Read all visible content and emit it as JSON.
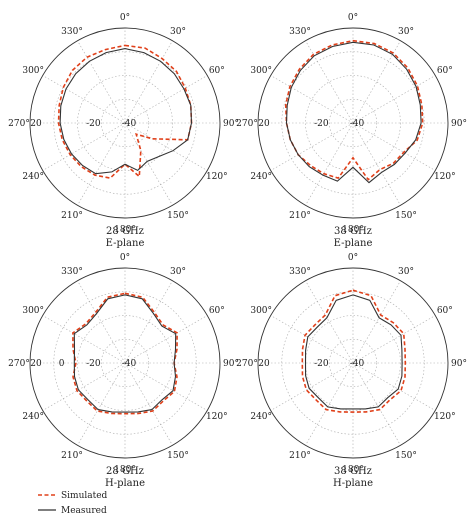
{
  "chart_data": [
    {
      "type": "polar-line",
      "title": "28 GHz",
      "subtitle": "E-plane",
      "angle_labels": [
        "0°",
        "30°",
        "60°",
        "90°",
        "120°",
        "150°",
        "180°",
        "210°",
        "240°",
        "270°",
        "300°",
        "330°"
      ],
      "radial_labels": [
        "20",
        "-20",
        "-40"
      ],
      "radial_range_db": [
        -40,
        20
      ],
      "radial_label_values": [
        20,
        -20,
        -40
      ],
      "grid": true,
      "angles_deg": [
        0,
        15,
        30,
        45,
        60,
        75,
        90,
        105,
        120,
        135,
        150,
        165,
        180,
        195,
        210,
        225,
        240,
        255,
        270,
        285,
        300,
        315,
        330,
        345
      ],
      "series": [
        {
          "name": "Simulated",
          "values": [
            9,
            9,
            7,
            6,
            4,
            3,
            2,
            1,
            -20,
            -30,
            -20,
            -5,
            -14,
            -4,
            -2,
            -1,
            0,
            1,
            2,
            3,
            5,
            7,
            8,
            8
          ]
        },
        {
          "name": "Measured",
          "values": [
            7,
            6,
            5,
            4,
            3,
            3,
            2,
            1,
            -5,
            -10,
            -12,
            -9,
            -14,
            -8,
            -3,
            -2,
            -1,
            0,
            1,
            2,
            3,
            4,
            5,
            6
          ]
        }
      ]
    },
    {
      "type": "polar-line",
      "title": "38 GHz",
      "subtitle": "E-plane",
      "angle_labels": [
        "0°",
        "30°",
        "60°",
        "90°",
        "120°",
        "150°",
        "180°",
        "210°",
        "240°",
        "270°",
        "300°",
        "330°"
      ],
      "radial_labels": [
        "20",
        "-20",
        "-40"
      ],
      "radial_range_db": [
        -40,
        20
      ],
      "radial_label_values": [
        20,
        -20,
        -40
      ],
      "grid": true,
      "angles_deg": [
        0,
        15,
        30,
        45,
        60,
        75,
        90,
        105,
        120,
        135,
        150,
        165,
        180,
        195,
        210,
        225,
        240,
        255,
        270,
        285,
        300,
        315,
        330,
        345
      ],
      "series": [
        {
          "name": "Simulated",
          "values": [
            12,
            12,
            11,
            9,
            7,
            5,
            4,
            2,
            -3,
            -4,
            -6,
            -3,
            -18,
            -4,
            -3,
            -2,
            0,
            1,
            2,
            4,
            6,
            8,
            10,
            11
          ]
        },
        {
          "name": "Measured",
          "values": [
            11,
            11,
            10,
            8,
            6,
            4,
            3,
            1,
            -2,
            -3,
            -4,
            -1,
            -12,
            -2,
            -2,
            -1,
            0,
            1,
            2,
            3,
            5,
            7,
            9,
            10
          ]
        }
      ]
    },
    {
      "type": "polar-line",
      "title": "28 GHz",
      "subtitle": "H-plane",
      "angle_labels": [
        "0°",
        "30°",
        "60°",
        "90°",
        "120°",
        "150°",
        "180°",
        "210°",
        "240°",
        "270°",
        "300°",
        "330°"
      ],
      "radial_labels": [
        "20",
        "0",
        "-20",
        "-40"
      ],
      "radial_range_db": [
        -40,
        20
      ],
      "radial_label_values": [
        20,
        0,
        -20,
        -40
      ],
      "grid": true,
      "angles_deg": [
        0,
        15,
        30,
        45,
        60,
        75,
        90,
        105,
        120,
        135,
        150,
        165,
        180,
        195,
        210,
        225,
        240,
        255,
        270,
        285,
        300,
        315,
        330,
        345
      ],
      "series": [
        {
          "name": "Simulated",
          "values": [
            4,
            3,
            -3,
            -6,
            -2,
            -6,
            -9,
            -6,
            -4,
            -6,
            -5,
            -7,
            -8,
            -7,
            -5,
            -6,
            -5,
            -6,
            -9,
            -6,
            -2,
            -5,
            -3,
            3
          ]
        },
        {
          "name": "Measured",
          "values": [
            3,
            2,
            -4,
            -7,
            -3,
            -7,
            -9,
            -7,
            -5,
            -7,
            -6,
            -8,
            -9,
            -8,
            -6,
            -7,
            -6,
            -7,
            -8,
            -7,
            -3,
            -6,
            -4,
            2
          ]
        }
      ]
    },
    {
      "type": "polar-line",
      "title": "38 GHz",
      "subtitle": "H-plane",
      "angle_labels": [
        "0°",
        "30°",
        "60°",
        "90°",
        "120°",
        "150°",
        "180°",
        "210°",
        "240°",
        "270°",
        "300°",
        "330°"
      ],
      "radial_labels": [
        "20",
        "-20",
        "-40"
      ],
      "radial_range_db": [
        -40,
        20
      ],
      "radial_label_values": [
        20,
        -20,
        -40
      ],
      "grid": true,
      "angles_deg": [
        0,
        15,
        30,
        45,
        60,
        75,
        90,
        105,
        120,
        135,
        150,
        165,
        180,
        195,
        210,
        225,
        240,
        255,
        270,
        285,
        300,
        315,
        330,
        345
      ],
      "series": [
        {
          "name": "Simulated",
          "values": [
            6,
            4,
            -5,
            -4,
            -3,
            -6,
            -7,
            -6,
            -5,
            -7,
            -6,
            -8,
            -9,
            -8,
            -6,
            -7,
            -6,
            -7,
            -8,
            -7,
            -5,
            -6,
            -5,
            4
          ]
        },
        {
          "name": "Measured",
          "values": [
            3,
            1,
            -7,
            -6,
            -5,
            -8,
            -9,
            -8,
            -7,
            -9,
            -8,
            -10,
            -11,
            -10,
            -8,
            -9,
            -8,
            -9,
            -10,
            -9,
            -7,
            -8,
            -7,
            1
          ]
        }
      ]
    }
  ],
  "legend": {
    "simulated_label": "Simulated",
    "measured_label": "Measured",
    "simulated_color": "#e0401a",
    "measured_color": "#333333"
  }
}
